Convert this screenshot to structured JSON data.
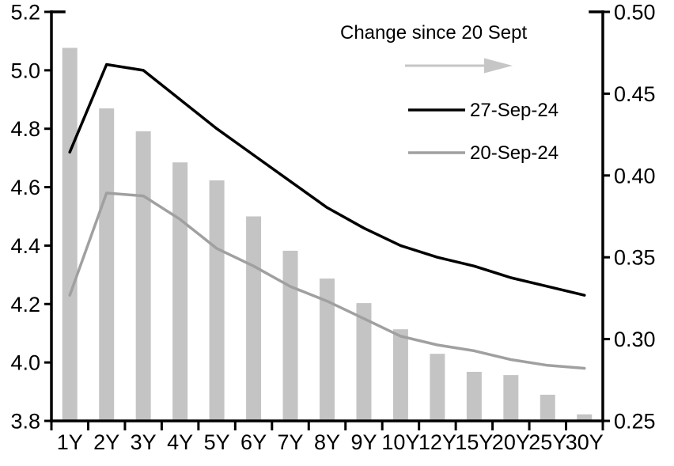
{
  "legend": {
    "change_label": "Change since 20 Sept",
    "arrow_icon": "right-arrow",
    "series1_label": "27-Sep-24",
    "series2_label": "20-Sep-24"
  },
  "colors": {
    "bar": "#c4c4c4",
    "line_black": "#000000",
    "line_gray": "#a0a0a0",
    "arrow": "#c6c6c6",
    "axis": "#000000",
    "text": "#000000",
    "background": "#ffffff"
  },
  "chart_data": {
    "type": "bar",
    "subtype": "bar + line combo, dual axis",
    "categories": [
      "1Y",
      "2Y",
      "3Y",
      "4Y",
      "5Y",
      "6Y",
      "7Y",
      "8Y",
      "9Y",
      "10Y",
      "12Y",
      "15Y",
      "20Y",
      "25Y",
      "30Y"
    ],
    "series": [
      {
        "name": "Change since 20 Sept",
        "render": "bar",
        "axis": "right",
        "values": [
          0.478,
          0.441,
          0.427,
          0.408,
          0.397,
          0.375,
          0.354,
          0.337,
          0.322,
          0.306,
          0.291,
          0.28,
          0.278,
          0.266,
          0.254
        ]
      },
      {
        "name": "27-Sep-24",
        "render": "line",
        "axis": "left",
        "values": [
          4.72,
          5.02,
          5.0,
          4.9,
          4.8,
          4.71,
          4.62,
          4.53,
          4.46,
          4.4,
          4.36,
          4.33,
          4.29,
          4.26,
          4.23
        ]
      },
      {
        "name": "20-Sep-24",
        "render": "line",
        "axis": "left",
        "values": [
          4.23,
          4.58,
          4.57,
          4.49,
          4.39,
          4.33,
          4.26,
          4.21,
          4.15,
          4.09,
          4.06,
          4.04,
          4.01,
          3.99,
          3.98
        ]
      }
    ],
    "title": "",
    "xlabel": "",
    "ylabel_left": "",
    "ylabel_right": "",
    "left_axis": {
      "min": 3.8,
      "max": 5.2,
      "step": 0.2,
      "tick_labels": [
        "5.2",
        "5.0",
        "4.8",
        "4.6",
        "4.4",
        "4.2",
        "4.0",
        "3.8"
      ]
    },
    "right_axis": {
      "min": 0.25,
      "max": 0.5,
      "step": 0.05,
      "tick_labels": [
        "0.50",
        "0.45",
        "0.40",
        "0.35",
        "0.30",
        "0.25"
      ]
    },
    "grid": false,
    "legend_position": "top-right-inside"
  }
}
